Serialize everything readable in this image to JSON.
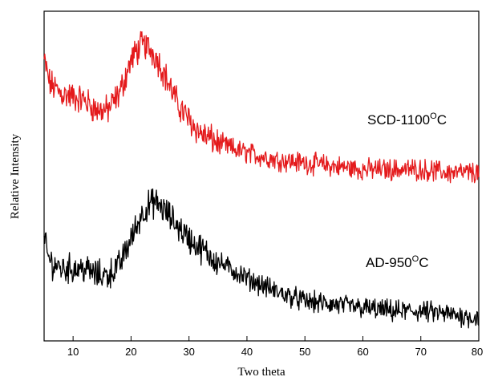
{
  "chart_data": {
    "type": "line",
    "title": "",
    "xlabel": "Two theta",
    "ylabel": "Relative Intensity",
    "xlim": [
      5,
      80
    ],
    "ylim": [
      0,
      100
    ],
    "x_ticks": [
      10,
      20,
      30,
      40,
      50,
      60,
      70,
      80
    ],
    "grid": false,
    "series": [
      {
        "label_main": "SCD-1100",
        "label_sup": "O",
        "label_end": "C",
        "color": "#e41a1c",
        "x": [
          5,
          6,
          8,
          10,
          12,
          14,
          16,
          18,
          19,
          20,
          21,
          22,
          23,
          24,
          25,
          26,
          27,
          28,
          30,
          32,
          35,
          38,
          40,
          45,
          50,
          55,
          60,
          65,
          70,
          75,
          80
        ],
        "y": [
          85,
          78,
          75,
          74,
          73,
          70,
          70,
          75,
          80,
          85,
          88,
          90,
          89,
          87,
          84,
          80,
          76,
          72,
          67,
          63,
          60,
          58,
          57,
          55,
          54,
          53,
          52,
          52,
          52,
          51,
          51
        ]
      },
      {
        "label_main": "AD-950",
        "label_sup": "O",
        "label_end": "C",
        "color": "#000000",
        "x": [
          5,
          6,
          8,
          10,
          12,
          14,
          16,
          18,
          20,
          21,
          22,
          23,
          24,
          25,
          26,
          27,
          28,
          30,
          32,
          35,
          38,
          40,
          45,
          50,
          55,
          60,
          65,
          70,
          75,
          80
        ],
        "y": [
          30,
          24,
          22,
          22,
          22,
          20,
          20,
          23,
          31,
          35,
          39,
          41,
          42,
          41,
          39,
          37,
          35,
          31,
          28,
          24,
          21,
          19,
          15,
          12,
          11,
          10,
          9,
          9,
          8,
          7
        ]
      }
    ]
  }
}
